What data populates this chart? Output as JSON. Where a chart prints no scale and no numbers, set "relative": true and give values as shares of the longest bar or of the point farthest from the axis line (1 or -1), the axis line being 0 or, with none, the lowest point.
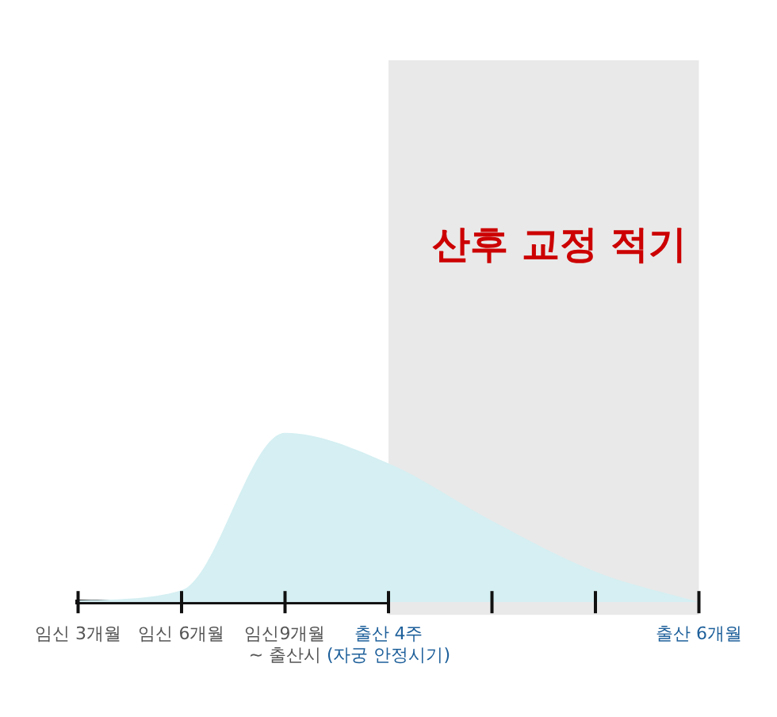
{
  "chart_data": {
    "type": "area",
    "relative": true,
    "categories": [
      "임신 3개월",
      "임신 6개월",
      "임신9개월\n~ 출산시",
      "출산 4주\n(자궁 안정시기)",
      null,
      null,
      "출산 6개월"
    ],
    "series": [
      {
        "color": "#d5eff2",
        "values": [
          0.01,
          0.07,
          1,
          0.82,
          0.48,
          0.18,
          0
        ]
      }
    ],
    "bands": [
      {
        "axis": "x",
        "from": "출산 4주\n(자궁 안정시기)",
        "to": "출산 6개월",
        "label": "산후 교정 적기",
        "color": "#e9e9e9"
      }
    ],
    "legend": false
  }
}
